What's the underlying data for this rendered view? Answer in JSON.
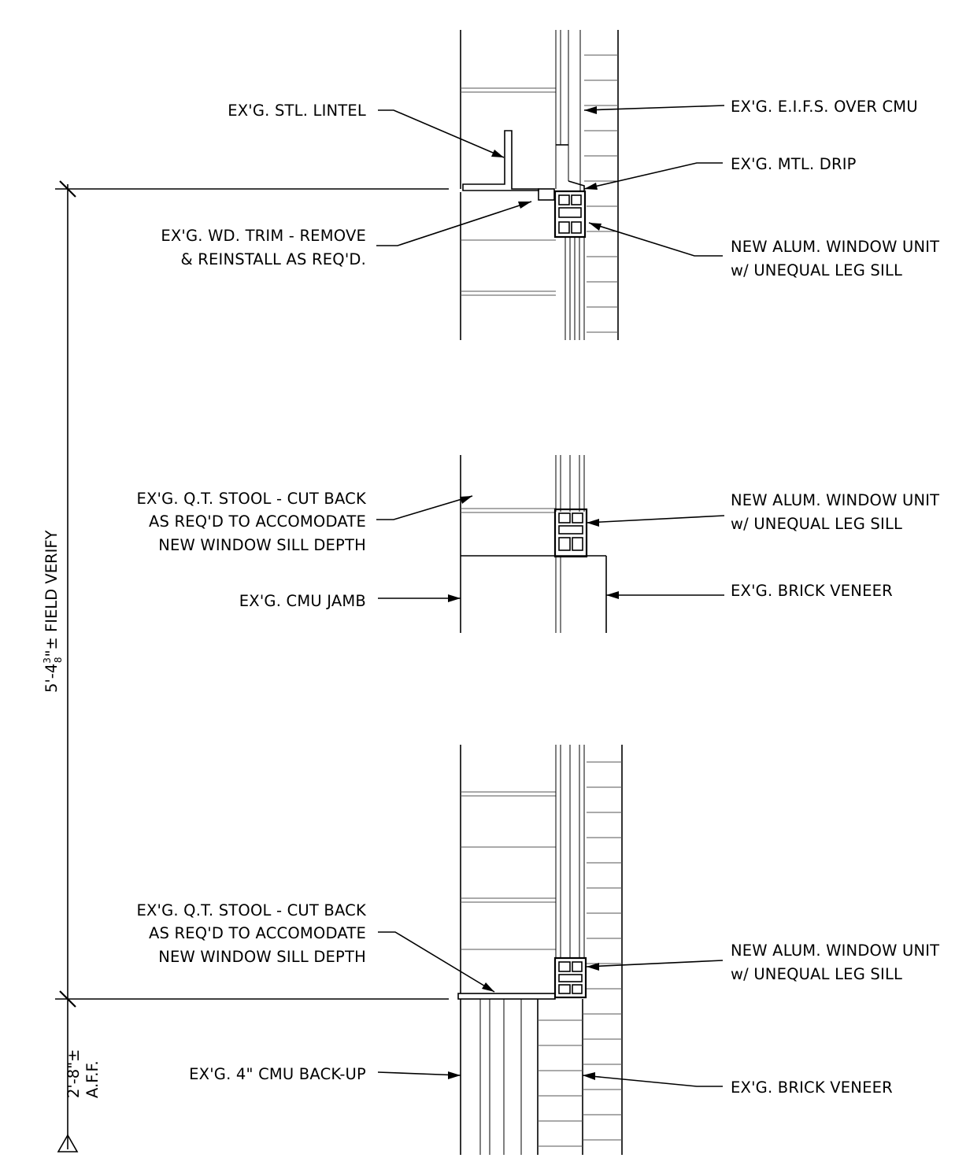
{
  "colors": {
    "line": "#000000",
    "background": "#ffffff"
  },
  "head": {
    "lintel": "EX'G. STL. LINTEL",
    "eifs": "EX'G. E.I.F.S. OVER CMU",
    "drip": "EX'G. MTL. DRIP",
    "trim_line1": "EX'G. WD. TRIM - REMOVE",
    "trim_line2": "& REINSTALL AS REQ'D.",
    "window_line1": "NEW ALUM. WINDOW UNIT",
    "window_line2": "w/ UNEQUAL LEG SILL"
  },
  "jamb": {
    "stool_line1": "EX'G. Q.T. STOOL - CUT BACK",
    "stool_line2": "AS REQ'D TO ACCOMODATE",
    "stool_line3": "NEW WINDOW SILL DEPTH",
    "window_line1": "NEW ALUM. WINDOW UNIT",
    "window_line2": "w/ UNEQUAL LEG SILL",
    "cmu_jamb": "EX'G. CMU JAMB",
    "brick": "EX'G. BRICK VENEER"
  },
  "sill": {
    "stool_line1": "EX'G. Q.T. STOOL - CUT BACK",
    "stool_line2": "AS REQ'D TO ACCOMODATE",
    "stool_line3": "NEW WINDOW SILL DEPTH",
    "window_line1": "NEW ALUM. WINDOW UNIT",
    "window_line2": "w/ UNEQUAL LEG SILL",
    "cmu_backup": "EX'G. 4\" CMU BACK-UP",
    "brick": "EX'G. BRICK VENEER"
  },
  "dimensions": {
    "upper_feet": "5'-4",
    "upper_frac_num": "3",
    "upper_frac_den": "8",
    "upper_suffix": "\"± FIELD VERIFY",
    "lower": "2'-8\"±",
    "lower_note": "A.F.F."
  }
}
